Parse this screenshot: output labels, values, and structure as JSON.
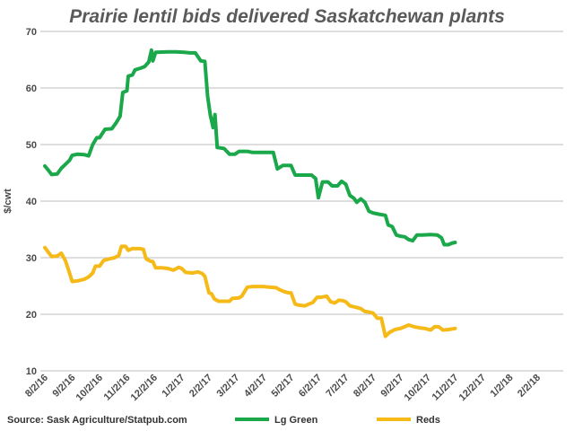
{
  "chart_data": {
    "type": "line",
    "title": "Prairie lentil bids delivered Saskatchewan plants",
    "ylabel": "$/cwt",
    "xlabel": "",
    "ylim": [
      10,
      70
    ],
    "yticks": [
      10,
      20,
      30,
      40,
      50,
      60,
      70
    ],
    "xticks": [
      "8/2/16",
      "9/2/16",
      "10/2/16",
      "11/2/16",
      "12/2/16",
      "1/2/17",
      "2/2/17",
      "3/2/17",
      "4/2/17",
      "5/2/17",
      "6/2/17",
      "7/2/17",
      "8/2/17",
      "9/2/17",
      "10/2/17",
      "11/2/17",
      "12/2/17",
      "1/2/18",
      "2/2/18"
    ],
    "grid": "horizontal",
    "legend_position": "bottom",
    "source": "Source: Sask Agriculture/Statpub.com",
    "series": [
      {
        "name": "Lg Green",
        "color": "#1aa84b",
        "points": [
          [
            0.0,
            46.2
          ],
          [
            0.12,
            45.5
          ],
          [
            0.25,
            44.7
          ],
          [
            0.45,
            44.8
          ],
          [
            0.6,
            45.8
          ],
          [
            0.75,
            46.5
          ],
          [
            0.9,
            47.2
          ],
          [
            1.0,
            48.1
          ],
          [
            1.2,
            48.3
          ],
          [
            1.45,
            48.2
          ],
          [
            1.6,
            48.0
          ],
          [
            1.75,
            50.0
          ],
          [
            1.9,
            51.2
          ],
          [
            2.0,
            51.2
          ],
          [
            2.2,
            52.7
          ],
          [
            2.45,
            52.8
          ],
          [
            2.6,
            53.8
          ],
          [
            2.75,
            55.0
          ],
          [
            2.85,
            59.2
          ],
          [
            3.0,
            59.5
          ],
          [
            3.05,
            62.1
          ],
          [
            3.2,
            62.3
          ],
          [
            3.3,
            63.2
          ],
          [
            3.5,
            63.5
          ],
          [
            3.65,
            63.8
          ],
          [
            3.8,
            64.6
          ],
          [
            3.9,
            66.7
          ],
          [
            3.95,
            64.8
          ],
          [
            4.05,
            66.3
          ],
          [
            4.5,
            66.4
          ],
          [
            4.8,
            66.4
          ],
          [
            5.1,
            66.3
          ],
          [
            5.3,
            66.2
          ],
          [
            5.5,
            66.2
          ],
          [
            5.7,
            64.8
          ],
          [
            5.85,
            64.7
          ],
          [
            5.95,
            58.5
          ],
          [
            6.05,
            55.2
          ],
          [
            6.15,
            53.0
          ],
          [
            6.22,
            55.3
          ],
          [
            6.3,
            49.5
          ],
          [
            6.55,
            49.3
          ],
          [
            6.75,
            48.3
          ],
          [
            6.95,
            48.3
          ],
          [
            7.1,
            48.8
          ],
          [
            7.4,
            48.8
          ],
          [
            7.6,
            48.6
          ],
          [
            7.9,
            48.6
          ],
          [
            8.2,
            48.6
          ],
          [
            8.35,
            48.6
          ],
          [
            8.5,
            45.7
          ],
          [
            8.7,
            46.3
          ],
          [
            9.0,
            46.3
          ],
          [
            9.15,
            44.6
          ],
          [
            9.5,
            44.6
          ],
          [
            9.75,
            44.6
          ],
          [
            9.9,
            44.0
          ],
          [
            10.0,
            40.6
          ],
          [
            10.15,
            43.4
          ],
          [
            10.35,
            43.4
          ],
          [
            10.5,
            42.7
          ],
          [
            10.7,
            42.7
          ],
          [
            10.85,
            43.5
          ],
          [
            11.0,
            43.0
          ],
          [
            11.15,
            41.0
          ],
          [
            11.3,
            40.5
          ],
          [
            11.4,
            39.8
          ],
          [
            11.55,
            40.4
          ],
          [
            11.7,
            39.8
          ],
          [
            11.85,
            38.2
          ],
          [
            12.0,
            37.9
          ],
          [
            12.2,
            37.7
          ],
          [
            12.45,
            37.5
          ],
          [
            12.55,
            35.8
          ],
          [
            12.7,
            35.5
          ],
          [
            12.85,
            34.0
          ],
          [
            13.0,
            33.8
          ],
          [
            13.15,
            33.7
          ],
          [
            13.3,
            33.2
          ],
          [
            13.45,
            33.0
          ],
          [
            13.6,
            34.0
          ],
          [
            13.8,
            34.0
          ],
          [
            14.1,
            34.1
          ],
          [
            14.35,
            34.0
          ],
          [
            14.5,
            33.5
          ],
          [
            14.6,
            32.3
          ],
          [
            14.75,
            32.3
          ],
          [
            14.9,
            32.6
          ],
          [
            15.0,
            32.7
          ]
        ]
      },
      {
        "name": "Reds",
        "color": "#f5b918",
        "points": [
          [
            0.0,
            31.8
          ],
          [
            0.12,
            31.0
          ],
          [
            0.25,
            30.2
          ],
          [
            0.45,
            30.3
          ],
          [
            0.6,
            30.8
          ],
          [
            0.75,
            29.5
          ],
          [
            0.9,
            27.3
          ],
          [
            1.0,
            25.8
          ],
          [
            1.2,
            25.9
          ],
          [
            1.45,
            26.2
          ],
          [
            1.6,
            26.6
          ],
          [
            1.75,
            27.3
          ],
          [
            1.85,
            28.5
          ],
          [
            2.0,
            28.5
          ],
          [
            2.15,
            29.5
          ],
          [
            2.35,
            29.8
          ],
          [
            2.55,
            30.0
          ],
          [
            2.7,
            30.4
          ],
          [
            2.8,
            32.0
          ],
          [
            2.95,
            32.0
          ],
          [
            3.05,
            31.3
          ],
          [
            3.2,
            31.6
          ],
          [
            3.45,
            31.6
          ],
          [
            3.6,
            31.5
          ],
          [
            3.7,
            29.8
          ],
          [
            3.85,
            29.4
          ],
          [
            3.95,
            29.3
          ],
          [
            4.05,
            28.2
          ],
          [
            4.3,
            28.2
          ],
          [
            4.5,
            28.1
          ],
          [
            4.7,
            27.8
          ],
          [
            4.9,
            28.3
          ],
          [
            5.0,
            28.1
          ],
          [
            5.15,
            27.4
          ],
          [
            5.4,
            27.3
          ],
          [
            5.6,
            27.5
          ],
          [
            5.75,
            27.2
          ],
          [
            5.85,
            26.7
          ],
          [
            6.0,
            23.8
          ],
          [
            6.1,
            23.6
          ],
          [
            6.2,
            22.7
          ],
          [
            6.35,
            22.3
          ],
          [
            6.6,
            22.3
          ],
          [
            6.75,
            22.3
          ],
          [
            6.85,
            22.8
          ],
          [
            7.1,
            22.9
          ],
          [
            7.2,
            23.2
          ],
          [
            7.4,
            24.8
          ],
          [
            7.6,
            24.9
          ],
          [
            7.8,
            24.9
          ],
          [
            8.0,
            24.9
          ],
          [
            8.2,
            24.8
          ],
          [
            8.45,
            24.7
          ],
          [
            8.6,
            24.3
          ],
          [
            8.75,
            24.0
          ],
          [
            8.9,
            23.8
          ],
          [
            9.0,
            23.8
          ],
          [
            9.15,
            21.8
          ],
          [
            9.3,
            21.6
          ],
          [
            9.5,
            21.5
          ],
          [
            9.65,
            21.8
          ],
          [
            9.8,
            22.1
          ],
          [
            9.95,
            23.0
          ],
          [
            10.1,
            23.0
          ],
          [
            10.3,
            23.2
          ],
          [
            10.45,
            22.2
          ],
          [
            10.6,
            22.0
          ],
          [
            10.75,
            22.5
          ],
          [
            10.9,
            22.4
          ],
          [
            11.0,
            22.2
          ],
          [
            11.15,
            21.5
          ],
          [
            11.4,
            21.2
          ],
          [
            11.55,
            21.0
          ],
          [
            11.7,
            20.5
          ],
          [
            11.85,
            20.4
          ],
          [
            12.0,
            20.2
          ],
          [
            12.15,
            19.3
          ],
          [
            12.3,
            19.3
          ],
          [
            12.45,
            16.1
          ],
          [
            12.6,
            16.8
          ],
          [
            12.8,
            17.3
          ],
          [
            13.0,
            17.5
          ],
          [
            13.15,
            17.8
          ],
          [
            13.3,
            18.1
          ],
          [
            13.5,
            17.8
          ],
          [
            13.7,
            17.6
          ],
          [
            13.9,
            17.5
          ],
          [
            14.1,
            17.2
          ],
          [
            14.25,
            17.8
          ],
          [
            14.4,
            17.8
          ],
          [
            14.55,
            17.2
          ],
          [
            14.75,
            17.3
          ],
          [
            15.0,
            17.5
          ]
        ]
      }
    ]
  }
}
